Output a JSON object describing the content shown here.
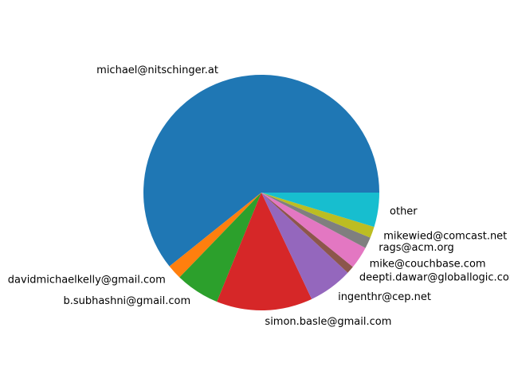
{
  "chart_data": {
    "type": "pie",
    "title": "",
    "start_angle_deg": 0,
    "direction": "counterclockwise",
    "slices": [
      {
        "label": "michael@nitschinger.at",
        "value": 63.2,
        "color": "#1f77b4"
      },
      {
        "label": "davidmichaelkelly@gmail.com",
        "value": 2.1,
        "color": "#ff7f0e"
      },
      {
        "label": "b.subhashni@gmail.com",
        "value": 6.3,
        "color": "#2ca02c"
      },
      {
        "label": "simon.basle@gmail.com",
        "value": 13.7,
        "color": "#d62728"
      },
      {
        "label": "ingenthr@cep.net",
        "value": 6.3,
        "color": "#9467bd"
      },
      {
        "label": "deepti.dawar@globallogic.com",
        "value": 1.1,
        "color": "#8c564b"
      },
      {
        "label": "mike@couchbase.com",
        "value": 3.2,
        "color": "#e377c2"
      },
      {
        "label": "rags@acm.org",
        "value": 1.6,
        "color": "#7f7f7f"
      },
      {
        "label": "mikewied@comcast.net",
        "value": 1.6,
        "color": "#bcbd22"
      },
      {
        "label": "other",
        "value": 4.9,
        "color": "#17becf"
      }
    ]
  }
}
